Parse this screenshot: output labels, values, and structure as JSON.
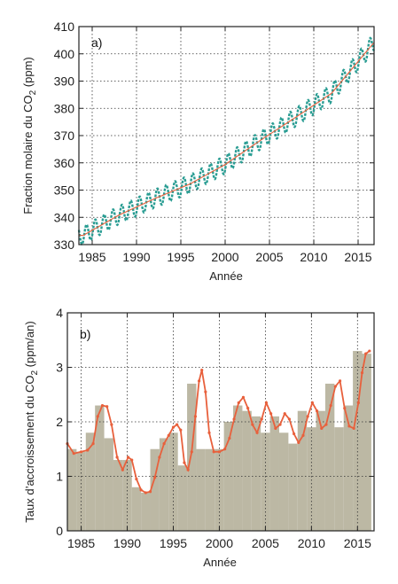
{
  "chart_data": [
    {
      "panel_label": "a)",
      "type": "line",
      "xlabel": "Année",
      "ylabel": "Fraction molaire du CO",
      "ylabel_sub": "2",
      "ylabel_unit": " (ppm)",
      "xlim": [
        1983.5,
        2016.8
      ],
      "ylim": [
        330,
        410
      ],
      "xticks": [
        1985,
        1990,
        1995,
        2000,
        2005,
        2010,
        2015
      ],
      "yticks": [
        330,
        340,
        350,
        360,
        370,
        380,
        390,
        400,
        410
      ],
      "grid": true,
      "colors": {
        "monthly": "#2a9d93",
        "trend": "#e8603c"
      },
      "series": [
        {
          "style": "monthly-dashed",
          "seasonal_amplitude_ppm": 3.3,
          "x": [
            1984,
            1988,
            1992,
            1996,
            2000,
            2004,
            2008,
            2012,
            2016.8
          ],
          "values": [
            333.4,
            340.8,
            346.8,
            352.2,
            359.4,
            368.3,
            376.8,
            385.5,
            404.2
          ]
        },
        {
          "style": "trend",
          "x": [
            1984,
            1988,
            1992,
            1996,
            2000,
            2004,
            2008,
            2012,
            2016.8
          ],
          "values": [
            333.4,
            340.8,
            346.8,
            352.2,
            359.4,
            368.3,
            376.8,
            385.5,
            404.2
          ]
        }
      ]
    },
    {
      "panel_label": "b)",
      "type": "bar",
      "xlabel": "Année",
      "ylabel": "Taux d’accroissement du CO",
      "ylabel_sub": "2",
      "ylabel_unit": " (ppm/an)",
      "xlim": [
        1983.5,
        2016.8
      ],
      "ylim": [
        0,
        4
      ],
      "xticks": [
        1985,
        1990,
        1995,
        2000,
        2005,
        2010,
        2015
      ],
      "yticks": [
        0,
        1,
        2,
        3,
        4
      ],
      "grid": true,
      "colors": {
        "bars": "#bcb8a4",
        "curve": "#e8603c"
      },
      "bars": {
        "years": [
          1984,
          1985,
          1986,
          1987,
          1988,
          1989,
          1990,
          1991,
          1992,
          1993,
          1994,
          1995,
          1996,
          1997,
          1998,
          1999,
          2000,
          2001,
          2002,
          2003,
          2004,
          2005,
          2006,
          2007,
          2008,
          2009,
          2010,
          2011,
          2012,
          2013,
          2014,
          2015,
          2016
        ],
        "values": [
          1.5,
          1.45,
          1.8,
          2.3,
          1.7,
          1.3,
          1.3,
          0.8,
          0.7,
          1.5,
          1.7,
          1.8,
          1.2,
          2.7,
          1.5,
          1.5,
          1.5,
          2.0,
          2.3,
          2.2,
          2.1,
          1.8,
          2.1,
          1.8,
          1.6,
          2.2,
          1.9,
          2.2,
          2.7,
          1.9,
          2.3,
          3.3,
          3.25
        ]
      },
      "curve": {
        "x": [
          1983.5,
          1984.2,
          1985,
          1985.7,
          1986.3,
          1986.8,
          1987.3,
          1987.8,
          1988.3,
          1988.9,
          1989.5,
          1990.1,
          1990.5,
          1991,
          1991.5,
          1992,
          1992.5,
          1993,
          1993.5,
          1994,
          1994.5,
          1995,
          1995.4,
          1995.8,
          1996.2,
          1996.6,
          1997,
          1997.4,
          1997.8,
          1998.1,
          1998.5,
          1998.9,
          1999.4,
          2000,
          2000.6,
          2001.1,
          2001.6,
          2002.1,
          2002.6,
          2003.1,
          2003.6,
          2004.1,
          2004.6,
          2005.1,
          2005.6,
          2006.1,
          2006.6,
          2007.1,
          2007.6,
          2008.1,
          2008.6,
          2009.1,
          2009.6,
          2010.1,
          2010.6,
          2011.1,
          2011.6,
          2012.1,
          2012.6,
          2013.1,
          2013.6,
          2014.1,
          2014.6,
          2015.1,
          2015.5,
          2015.9,
          2016.3
        ],
        "values": [
          1.6,
          1.42,
          1.45,
          1.48,
          1.6,
          2.1,
          2.3,
          2.28,
          1.95,
          1.35,
          1.12,
          1.35,
          1.3,
          0.95,
          0.75,
          0.7,
          0.72,
          0.98,
          1.35,
          1.6,
          1.75,
          1.9,
          1.95,
          1.85,
          1.25,
          1.12,
          1.45,
          2.1,
          2.75,
          2.95,
          2.55,
          1.8,
          1.45,
          1.45,
          1.5,
          1.7,
          2.05,
          2.35,
          2.45,
          2.25,
          1.95,
          1.8,
          2.05,
          2.35,
          2.15,
          1.88,
          1.95,
          2.15,
          2.05,
          1.78,
          1.62,
          1.75,
          2.1,
          2.35,
          2.2,
          1.88,
          1.95,
          2.3,
          2.65,
          2.75,
          2.25,
          1.92,
          1.88,
          2.35,
          2.9,
          3.25,
          3.3
        ]
      }
    }
  ]
}
